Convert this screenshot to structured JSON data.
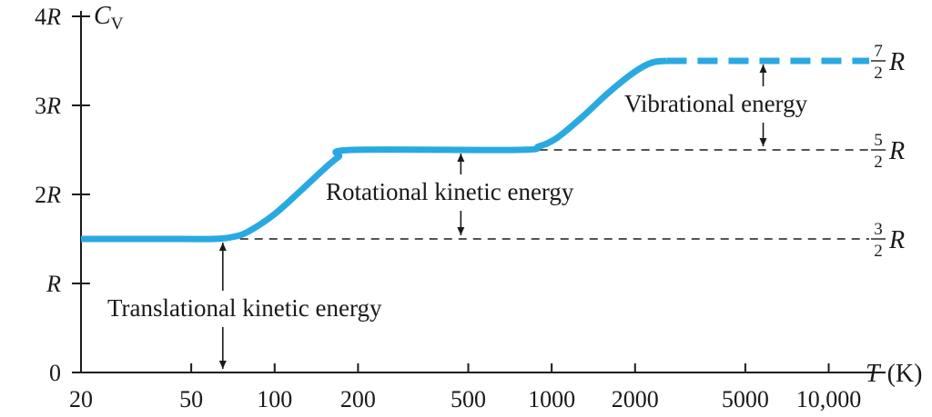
{
  "chart_data": {
    "type": "line",
    "x_scale": "log",
    "xlim": [
      20,
      14000
    ],
    "ylim": [
      0,
      4
    ],
    "y_axis_label": "C",
    "y_axis_label_sub": "V",
    "x_axis_label": "T",
    "x_axis_unit": "(K)",
    "x_ticks": [
      {
        "value": 20,
        "label": "20"
      },
      {
        "value": 50,
        "label": "50"
      },
      {
        "value": 100,
        "label": "100"
      },
      {
        "value": 200,
        "label": "200"
      },
      {
        "value": 500,
        "label": "500"
      },
      {
        "value": 1000,
        "label": "1000"
      },
      {
        "value": 2000,
        "label": "2000"
      },
      {
        "value": 5000,
        "label": "5000"
      },
      {
        "value": 10000,
        "label": "10,000"
      }
    ],
    "y_ticks": [
      {
        "value": 0,
        "num": "0",
        "sym": ""
      },
      {
        "value": 1,
        "num": "",
        "sym": "R"
      },
      {
        "value": 2,
        "num": "2",
        "sym": "R"
      },
      {
        "value": 3,
        "num": "3",
        "sym": "R"
      },
      {
        "value": 4,
        "num": "4",
        "sym": "R"
      }
    ],
    "series": [
      {
        "color": "#29a9e1",
        "solid_points": [
          [
            20,
            1.5
          ],
          [
            45,
            1.5
          ],
          [
            60,
            1.5
          ],
          [
            70,
            1.52
          ],
          [
            80,
            1.58
          ],
          [
            100,
            1.78
          ],
          [
            125,
            2.05
          ],
          [
            150,
            2.28
          ],
          [
            170,
            2.42
          ],
          [
            190,
            2.5
          ],
          [
            750,
            2.5
          ],
          [
            900,
            2.54
          ],
          [
            1050,
            2.64
          ],
          [
            1300,
            2.88
          ],
          [
            1600,
            3.14
          ],
          [
            2000,
            3.38
          ],
          [
            2300,
            3.48
          ],
          [
            2600,
            3.5
          ]
        ],
        "dashed_points": [
          [
            2600,
            3.5
          ],
          [
            14000,
            3.5
          ]
        ]
      }
    ],
    "reference_lines": [
      {
        "y": 1.5,
        "x_from": 75,
        "x_to": 14000,
        "num": "3",
        "den": "2",
        "sym": "R"
      },
      {
        "y": 2.5,
        "x_from": 800,
        "x_to": 14000,
        "num": "5",
        "den": "2",
        "sym": "R"
      }
    ],
    "annotations": [
      {
        "text": "Translational kinetic energy",
        "x": 65,
        "y_from": 0,
        "y_to": 1.5
      },
      {
        "text": "Rotational kinetic energy",
        "x": 470,
        "y_from": 1.5,
        "y_to": 2.5
      },
      {
        "text": "Vibrational energy",
        "x": 5800,
        "y_from": 2.5,
        "y_to": 3.5
      }
    ],
    "top_ref_label": {
      "y": 3.5,
      "num": "7",
      "den": "2",
      "sym": "R"
    }
  }
}
